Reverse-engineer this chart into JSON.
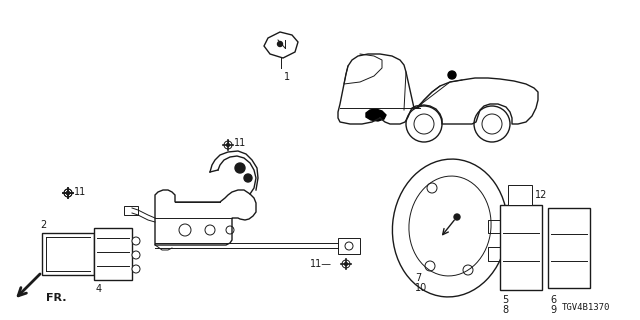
{
  "diagram_number": "TGV4B1370",
  "background_color": "#ffffff",
  "line_color": "#1a1a1a",
  "figsize": [
    6.4,
    3.2
  ],
  "dpi": 100,
  "xlim": [
    0,
    640
  ],
  "ylim": [
    0,
    320
  ]
}
